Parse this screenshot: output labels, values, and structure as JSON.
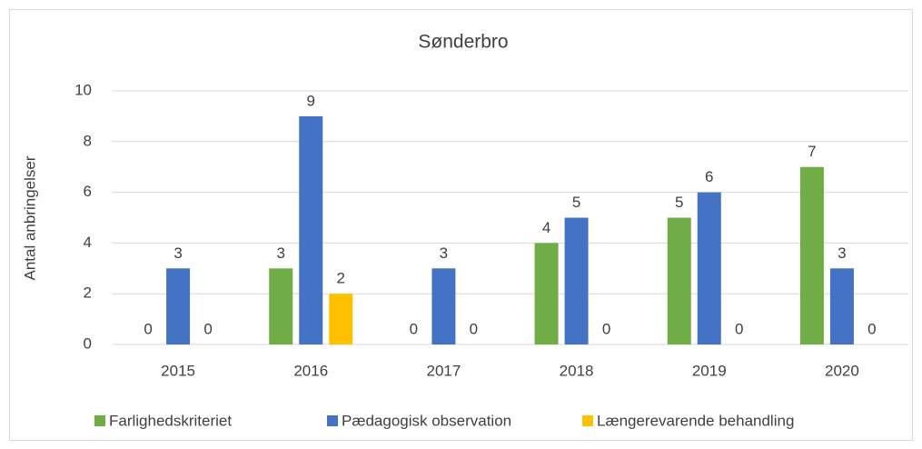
{
  "chart_data": {
    "type": "bar",
    "title": "Sønderbro",
    "y_label": "Antal anbringelser",
    "categories": [
      "2015",
      "2016",
      "2017",
      "2018",
      "2019",
      "2020"
    ],
    "series": [
      {
        "name": "Farlighedskriteriet",
        "color": "#70ad47",
        "values": [
          0,
          3,
          0,
          4,
          5,
          7
        ]
      },
      {
        "name": "Pædagogisk observation",
        "color": "#4472c4",
        "values": [
          3,
          9,
          3,
          5,
          6,
          3
        ]
      },
      {
        "name": "Længerevarende behandling",
        "color": "#ffc000",
        "values": [
          0,
          2,
          0,
          0,
          0,
          0
        ]
      }
    ],
    "ylim": [
      0,
      10
    ],
    "yticks": [
      0,
      2,
      4,
      6,
      8,
      10
    ],
    "grid": true,
    "legend": "bottom"
  }
}
